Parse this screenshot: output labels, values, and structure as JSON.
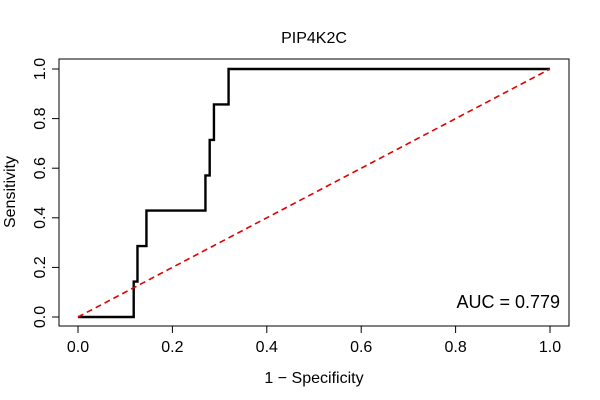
{
  "chart_data": {
    "type": "line",
    "title": "PIP4K2C",
    "xlabel": "1 − Specificity",
    "ylabel": "Sensitivity",
    "xlim": [
      0,
      1
    ],
    "ylim": [
      0,
      1
    ],
    "x_ticks": [
      "0.0",
      "0.2",
      "0.4",
      "0.6",
      "0.8",
      "1.0"
    ],
    "y_ticks": [
      "0.0",
      "0.2",
      "0.4",
      "0.6",
      "0.8",
      "1.0"
    ],
    "grid": false,
    "annotation": "AUC = 0.779",
    "series": [
      {
        "name": "ROC curve",
        "color": "#000000",
        "x": [
          0.0,
          0.118,
          0.118,
          0.126,
          0.126,
          0.145,
          0.145,
          0.27,
          0.27,
          0.279,
          0.279,
          0.288,
          0.288,
          0.319,
          0.319,
          1.0
        ],
        "y": [
          0.0,
          0.0,
          0.143,
          0.143,
          0.286,
          0.286,
          0.429,
          0.429,
          0.571,
          0.571,
          0.714,
          0.714,
          0.857,
          0.857,
          1.0,
          1.0
        ]
      },
      {
        "name": "Reference diagonal",
        "color": "#e00000",
        "dashed": true,
        "x": [
          0.0,
          1.0
        ],
        "y": [
          0.0,
          1.0
        ]
      }
    ]
  }
}
